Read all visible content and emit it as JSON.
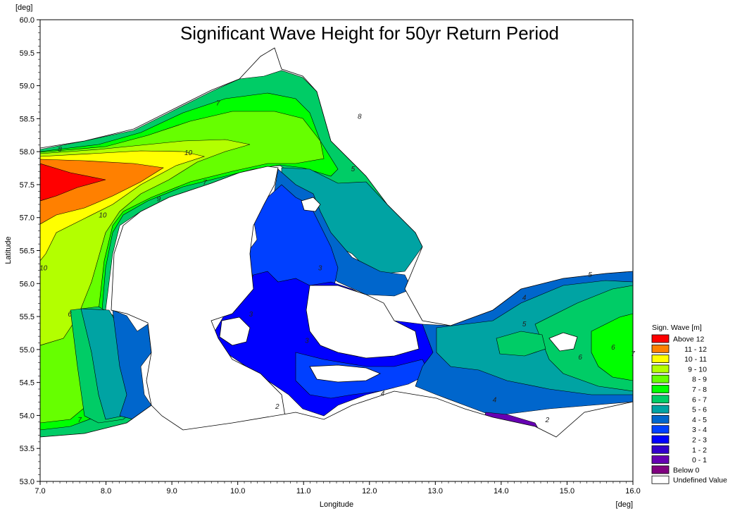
{
  "chart_data": {
    "type": "heatmap",
    "title": "Significant Wave Height for 50yr Return Period",
    "xlabel": "Longitude",
    "ylabel": "Latitude",
    "x_unit": "[deg]",
    "y_unit": "[deg]",
    "xlim": [
      7.0,
      16.0
    ],
    "ylim": [
      53.0,
      60.0
    ],
    "x_ticks": [
      "7.0",
      "8.0",
      "9.0",
      "10.0",
      "11.0",
      "12.0",
      "13.0",
      "14.0",
      "15.0",
      "16.0"
    ],
    "y_ticks": [
      "53.0",
      "53.5",
      "54.0",
      "54.5",
      "55.0",
      "55.5",
      "56.0",
      "56.5",
      "57.0",
      "57.5",
      "58.0",
      "58.5",
      "59.0",
      "59.5",
      "60.0"
    ],
    "legend": {
      "title": "Sign. Wave  [m]",
      "items": [
        {
          "label": "Above 12",
          "color": "#ff0000"
        },
        {
          "label": "11 - 12",
          "color": "#ff8000"
        },
        {
          "label": "10 - 11",
          "color": "#ffff00"
        },
        {
          "label": "9 - 10",
          "color": "#b3ff00"
        },
        {
          "label": "8 - 9",
          "color": "#66ff00"
        },
        {
          "label": "7 - 8",
          "color": "#00ff00"
        },
        {
          "label": "6 - 7",
          "color": "#00cc66"
        },
        {
          "label": "5 - 6",
          "color": "#00a3a3"
        },
        {
          "label": "4 - 5",
          "color": "#0066cc"
        },
        {
          "label": "3 - 4",
          "color": "#0040ff"
        },
        {
          "label": "2 - 3",
          "color": "#0000ff"
        },
        {
          "label": "1 - 2",
          "color": "#3300cc"
        },
        {
          "label": "0 - 1",
          "color": "#6600b3"
        },
        {
          "label": "Below 0",
          "color": "#800080"
        },
        {
          "label": "Undefined Value",
          "color": "#ffffff"
        }
      ]
    },
    "contour_labels": [
      {
        "text": "10",
        "lon": 9.25,
        "lat": 57.95
      },
      {
        "text": "10",
        "lon": 7.95,
        "lat": 57.0
      },
      {
        "text": "10",
        "lon": 7.05,
        "lat": 56.2
      },
      {
        "text": "9",
        "lon": 8.8,
        "lat": 57.25
      },
      {
        "text": "8",
        "lon": 11.85,
        "lat": 58.5
      },
      {
        "text": "8",
        "lon": 7.3,
        "lat": 58.0
      },
      {
        "text": "7",
        "lon": 9.7,
        "lat": 58.7
      },
      {
        "text": "7",
        "lon": 9.5,
        "lat": 57.5
      },
      {
        "text": "7",
        "lon": 7.6,
        "lat": 53.9
      },
      {
        "text": "6",
        "lon": 7.45,
        "lat": 55.5
      },
      {
        "text": "6",
        "lon": 15.7,
        "lat": 55.0
      },
      {
        "text": "6",
        "lon": 15.2,
        "lat": 54.85
      },
      {
        "text": "5",
        "lon": 11.75,
        "lat": 57.7
      },
      {
        "text": "5",
        "lon": 15.35,
        "lat": 56.1
      },
      {
        "text": "5",
        "lon": 14.35,
        "lat": 55.35
      },
      {
        "text": "4",
        "lon": 14.35,
        "lat": 55.75
      },
      {
        "text": "4",
        "lon": 12.2,
        "lat": 54.3
      },
      {
        "text": "4",
        "lon": 13.9,
        "lat": 54.2
      },
      {
        "text": "3",
        "lon": 11.25,
        "lat": 56.2
      },
      {
        "text": "3",
        "lon": 11.05,
        "lat": 55.1
      },
      {
        "text": "3",
        "lon": 10.2,
        "lat": 55.5
      },
      {
        "text": "2",
        "lon": 10.6,
        "lat": 54.1
      },
      {
        "text": "2",
        "lon": 14.7,
        "lat": 53.9
      },
      {
        "text": "7",
        "lon": 16.0,
        "lat": 54.9
      }
    ]
  }
}
